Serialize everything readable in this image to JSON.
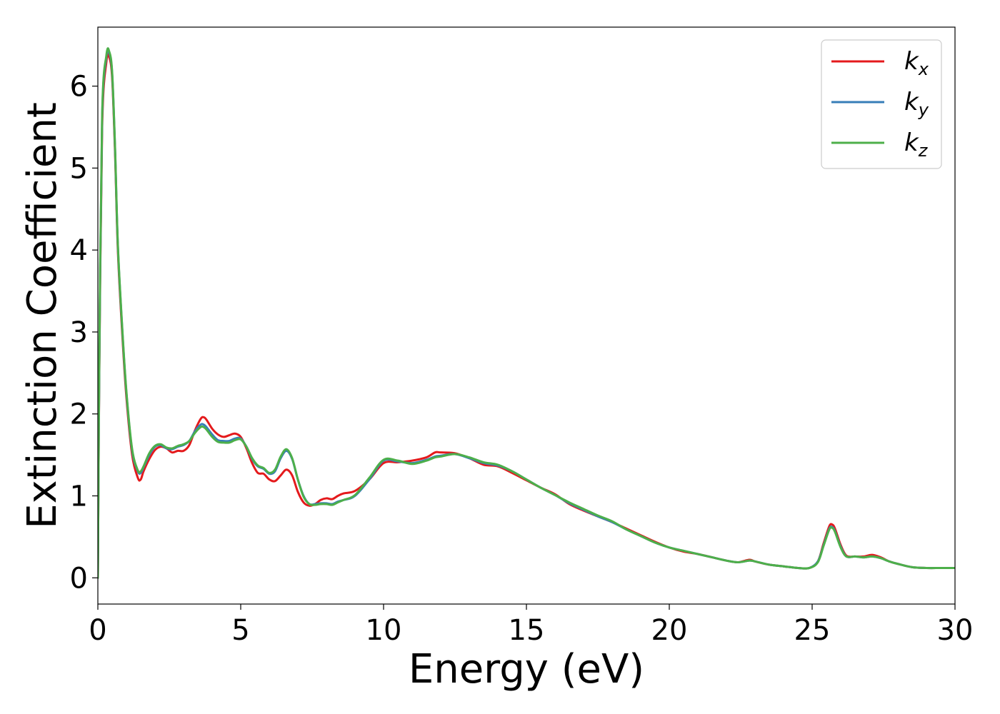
{
  "chart_data": {
    "type": "line",
    "title": "",
    "xlabel": "Energy (eV)",
    "ylabel": "Extinction Coefficient",
    "xlim": [
      0,
      30
    ],
    "ylim": [
      -0.32,
      6.72
    ],
    "grid": false,
    "legend_position": "top-right",
    "x_ticks": [
      {
        "value": 0,
        "label": "0"
      },
      {
        "value": 5,
        "label": "5"
      },
      {
        "value": 10,
        "label": "10"
      },
      {
        "value": 15,
        "label": "15"
      },
      {
        "value": 20,
        "label": "20"
      },
      {
        "value": 25,
        "label": "25"
      },
      {
        "value": 30,
        "label": "30"
      }
    ],
    "y_ticks": [
      {
        "value": 0,
        "label": "0"
      },
      {
        "value": 1,
        "label": "1"
      },
      {
        "value": 2,
        "label": "2"
      },
      {
        "value": 3,
        "label": "3"
      },
      {
        "value": 4,
        "label": "4"
      },
      {
        "value": 5,
        "label": "5"
      },
      {
        "value": 6,
        "label": "6"
      }
    ],
    "series": [
      {
        "name": "k",
        "subscript": "x",
        "color": "#e41a1c",
        "points": [
          [
            0,
            0
          ],
          [
            0.05,
            2.5
          ],
          [
            0.15,
            5.5
          ],
          [
            0.3,
            6.3
          ],
          [
            0.4,
            6.35
          ],
          [
            0.5,
            6.1
          ],
          [
            0.6,
            5.2
          ],
          [
            0.7,
            4.0
          ],
          [
            0.85,
            3.0
          ],
          [
            1.0,
            2.2
          ],
          [
            1.2,
            1.5
          ],
          [
            1.4,
            1.22
          ],
          [
            1.5,
            1.2
          ],
          [
            1.6,
            1.3
          ],
          [
            1.8,
            1.45
          ],
          [
            2.0,
            1.56
          ],
          [
            2.2,
            1.6
          ],
          [
            2.4,
            1.58
          ],
          [
            2.6,
            1.53
          ],
          [
            2.8,
            1.55
          ],
          [
            3.0,
            1.55
          ],
          [
            3.2,
            1.62
          ],
          [
            3.4,
            1.8
          ],
          [
            3.6,
            1.94
          ],
          [
            3.7,
            1.96
          ],
          [
            3.8,
            1.93
          ],
          [
            4.0,
            1.82
          ],
          [
            4.2,
            1.75
          ],
          [
            4.4,
            1.72
          ],
          [
            4.6,
            1.74
          ],
          [
            4.8,
            1.76
          ],
          [
            5.0,
            1.72
          ],
          [
            5.2,
            1.58
          ],
          [
            5.4,
            1.4
          ],
          [
            5.6,
            1.28
          ],
          [
            5.8,
            1.27
          ],
          [
            6.0,
            1.2
          ],
          [
            6.2,
            1.18
          ],
          [
            6.4,
            1.25
          ],
          [
            6.6,
            1.32
          ],
          [
            6.8,
            1.25
          ],
          [
            7.0,
            1.05
          ],
          [
            7.2,
            0.92
          ],
          [
            7.4,
            0.88
          ],
          [
            7.6,
            0.9
          ],
          [
            7.8,
            0.95
          ],
          [
            8.0,
            0.97
          ],
          [
            8.2,
            0.96
          ],
          [
            8.4,
            1.0
          ],
          [
            8.6,
            1.03
          ],
          [
            9.0,
            1.06
          ],
          [
            9.5,
            1.2
          ],
          [
            10.0,
            1.4
          ],
          [
            10.5,
            1.41
          ],
          [
            11.0,
            1.43
          ],
          [
            11.5,
            1.47
          ],
          [
            11.8,
            1.53
          ],
          [
            12.0,
            1.53
          ],
          [
            12.5,
            1.52
          ],
          [
            13.0,
            1.46
          ],
          [
            13.5,
            1.38
          ],
          [
            14.0,
            1.36
          ],
          [
            14.5,
            1.28
          ],
          [
            15.0,
            1.19
          ],
          [
            15.5,
            1.1
          ],
          [
            16.0,
            1.02
          ],
          [
            16.5,
            0.9
          ],
          [
            17.0,
            0.82
          ],
          [
            17.5,
            0.75
          ],
          [
            18.0,
            0.68
          ],
          [
            18.5,
            0.6
          ],
          [
            19.0,
            0.52
          ],
          [
            19.5,
            0.44
          ],
          [
            20.0,
            0.37
          ],
          [
            20.5,
            0.32
          ],
          [
            21.0,
            0.29
          ],
          [
            21.5,
            0.25
          ],
          [
            22.0,
            0.21
          ],
          [
            22.4,
            0.19
          ],
          [
            22.8,
            0.22
          ],
          [
            23.0,
            0.2
          ],
          [
            23.5,
            0.16
          ],
          [
            24.0,
            0.14
          ],
          [
            24.5,
            0.12
          ],
          [
            24.9,
            0.12
          ],
          [
            25.2,
            0.2
          ],
          [
            25.4,
            0.42
          ],
          [
            25.6,
            0.63
          ],
          [
            25.7,
            0.65
          ],
          [
            25.8,
            0.6
          ],
          [
            26.0,
            0.4
          ],
          [
            26.2,
            0.27
          ],
          [
            26.5,
            0.26
          ],
          [
            26.8,
            0.26
          ],
          [
            27.1,
            0.28
          ],
          [
            27.4,
            0.25
          ],
          [
            27.7,
            0.2
          ],
          [
            28.0,
            0.17
          ],
          [
            28.5,
            0.13
          ],
          [
            29.0,
            0.12
          ],
          [
            29.5,
            0.12
          ],
          [
            30.0,
            0.12
          ]
        ]
      },
      {
        "name": "k",
        "subscript": "y",
        "color": "#377eb8",
        "points": [
          [
            0,
            0
          ],
          [
            0.05,
            2.55
          ],
          [
            0.15,
            5.6
          ],
          [
            0.3,
            6.36
          ],
          [
            0.4,
            6.4
          ],
          [
            0.5,
            6.15
          ],
          [
            0.6,
            5.25
          ],
          [
            0.7,
            4.05
          ],
          [
            0.85,
            3.05
          ],
          [
            1.0,
            2.25
          ],
          [
            1.2,
            1.55
          ],
          [
            1.4,
            1.3
          ],
          [
            1.5,
            1.28
          ],
          [
            1.6,
            1.35
          ],
          [
            1.8,
            1.5
          ],
          [
            2.0,
            1.6
          ],
          [
            2.2,
            1.62
          ],
          [
            2.4,
            1.58
          ],
          [
            2.6,
            1.57
          ],
          [
            2.8,
            1.6
          ],
          [
            3.0,
            1.62
          ],
          [
            3.2,
            1.67
          ],
          [
            3.4,
            1.79
          ],
          [
            3.6,
            1.87
          ],
          [
            3.7,
            1.87
          ],
          [
            3.8,
            1.84
          ],
          [
            4.0,
            1.75
          ],
          [
            4.2,
            1.68
          ],
          [
            4.4,
            1.67
          ],
          [
            4.6,
            1.67
          ],
          [
            4.8,
            1.7
          ],
          [
            5.0,
            1.7
          ],
          [
            5.2,
            1.6
          ],
          [
            5.4,
            1.45
          ],
          [
            5.6,
            1.36
          ],
          [
            5.8,
            1.33
          ],
          [
            6.0,
            1.27
          ],
          [
            6.2,
            1.3
          ],
          [
            6.4,
            1.46
          ],
          [
            6.6,
            1.55
          ],
          [
            6.8,
            1.45
          ],
          [
            7.0,
            1.2
          ],
          [
            7.2,
            1.0
          ],
          [
            7.4,
            0.9
          ],
          [
            7.6,
            0.9
          ],
          [
            7.8,
            0.91
          ],
          [
            8.0,
            0.91
          ],
          [
            8.2,
            0.9
          ],
          [
            8.4,
            0.93
          ],
          [
            8.6,
            0.95
          ],
          [
            9.0,
            1.0
          ],
          [
            9.5,
            1.2
          ],
          [
            10.0,
            1.43
          ],
          [
            10.5,
            1.42
          ],
          [
            11.0,
            1.4
          ],
          [
            11.5,
            1.44
          ],
          [
            11.8,
            1.48
          ],
          [
            12.0,
            1.49
          ],
          [
            12.5,
            1.51
          ],
          [
            13.0,
            1.46
          ],
          [
            13.5,
            1.4
          ],
          [
            14.0,
            1.37
          ],
          [
            14.5,
            1.3
          ],
          [
            15.0,
            1.2
          ],
          [
            15.5,
            1.1
          ],
          [
            16.0,
            1.01
          ],
          [
            16.5,
            0.91
          ],
          [
            17.0,
            0.83
          ],
          [
            17.5,
            0.75
          ],
          [
            18.0,
            0.68
          ],
          [
            18.5,
            0.59
          ],
          [
            19.0,
            0.51
          ],
          [
            19.5,
            0.43
          ],
          [
            20.0,
            0.37
          ],
          [
            20.5,
            0.33
          ],
          [
            21.0,
            0.29
          ],
          [
            21.5,
            0.25
          ],
          [
            22.0,
            0.21
          ],
          [
            22.4,
            0.19
          ],
          [
            22.8,
            0.21
          ],
          [
            23.0,
            0.2
          ],
          [
            23.5,
            0.16
          ],
          [
            24.0,
            0.14
          ],
          [
            24.5,
            0.12
          ],
          [
            24.9,
            0.12
          ],
          [
            25.2,
            0.2
          ],
          [
            25.4,
            0.4
          ],
          [
            25.6,
            0.6
          ],
          [
            25.7,
            0.62
          ],
          [
            25.8,
            0.57
          ],
          [
            26.0,
            0.38
          ],
          [
            26.2,
            0.26
          ],
          [
            26.5,
            0.26
          ],
          [
            26.8,
            0.25
          ],
          [
            27.1,
            0.26
          ],
          [
            27.4,
            0.24
          ],
          [
            27.7,
            0.2
          ],
          [
            28.0,
            0.17
          ],
          [
            28.5,
            0.13
          ],
          [
            29.0,
            0.12
          ],
          [
            29.5,
            0.12
          ],
          [
            30.0,
            0.12
          ]
        ]
      },
      {
        "name": "k",
        "subscript": "z",
        "color": "#4daf4a",
        "points": [
          [
            0,
            0
          ],
          [
            0.05,
            2.6
          ],
          [
            0.15,
            5.65
          ],
          [
            0.3,
            6.38
          ],
          [
            0.4,
            6.42
          ],
          [
            0.5,
            6.17
          ],
          [
            0.6,
            5.27
          ],
          [
            0.7,
            4.07
          ],
          [
            0.85,
            3.07
          ],
          [
            1.0,
            2.27
          ],
          [
            1.2,
            1.57
          ],
          [
            1.4,
            1.31
          ],
          [
            1.5,
            1.3
          ],
          [
            1.6,
            1.36
          ],
          [
            1.8,
            1.52
          ],
          [
            2.0,
            1.61
          ],
          [
            2.2,
            1.63
          ],
          [
            2.4,
            1.59
          ],
          [
            2.6,
            1.58
          ],
          [
            2.8,
            1.61
          ],
          [
            3.0,
            1.63
          ],
          [
            3.2,
            1.67
          ],
          [
            3.4,
            1.77
          ],
          [
            3.6,
            1.84
          ],
          [
            3.7,
            1.84
          ],
          [
            3.8,
            1.81
          ],
          [
            4.0,
            1.72
          ],
          [
            4.2,
            1.66
          ],
          [
            4.4,
            1.65
          ],
          [
            4.6,
            1.65
          ],
          [
            4.8,
            1.68
          ],
          [
            5.0,
            1.69
          ],
          [
            5.2,
            1.6
          ],
          [
            5.4,
            1.46
          ],
          [
            5.6,
            1.37
          ],
          [
            5.8,
            1.34
          ],
          [
            6.0,
            1.28
          ],
          [
            6.2,
            1.32
          ],
          [
            6.4,
            1.48
          ],
          [
            6.6,
            1.57
          ],
          [
            6.8,
            1.46
          ],
          [
            7.0,
            1.2
          ],
          [
            7.2,
            0.99
          ],
          [
            7.4,
            0.9
          ],
          [
            7.6,
            0.89
          ],
          [
            7.8,
            0.9
          ],
          [
            8.0,
            0.9
          ],
          [
            8.2,
            0.89
          ],
          [
            8.4,
            0.92
          ],
          [
            8.6,
            0.95
          ],
          [
            9.0,
            1.01
          ],
          [
            9.5,
            1.22
          ],
          [
            10.0,
            1.44
          ],
          [
            10.5,
            1.43
          ],
          [
            11.0,
            1.39
          ],
          [
            11.5,
            1.43
          ],
          [
            11.8,
            1.47
          ],
          [
            12.0,
            1.48
          ],
          [
            12.5,
            1.51
          ],
          [
            13.0,
            1.47
          ],
          [
            13.5,
            1.41
          ],
          [
            14.0,
            1.38
          ],
          [
            14.5,
            1.3
          ],
          [
            15.0,
            1.2
          ],
          [
            15.5,
            1.1
          ],
          [
            16.0,
            1.01
          ],
          [
            16.5,
            0.92
          ],
          [
            17.0,
            0.84
          ],
          [
            17.5,
            0.76
          ],
          [
            18.0,
            0.69
          ],
          [
            18.5,
            0.59
          ],
          [
            19.0,
            0.51
          ],
          [
            19.5,
            0.43
          ],
          [
            20.0,
            0.37
          ],
          [
            20.5,
            0.33
          ],
          [
            21.0,
            0.29
          ],
          [
            21.5,
            0.25
          ],
          [
            22.0,
            0.21
          ],
          [
            22.4,
            0.19
          ],
          [
            22.8,
            0.21
          ],
          [
            23.0,
            0.2
          ],
          [
            23.5,
            0.16
          ],
          [
            24.0,
            0.14
          ],
          [
            24.5,
            0.12
          ],
          [
            24.9,
            0.12
          ],
          [
            25.2,
            0.19
          ],
          [
            25.4,
            0.39
          ],
          [
            25.6,
            0.59
          ],
          [
            25.7,
            0.61
          ],
          [
            25.8,
            0.56
          ],
          [
            26.0,
            0.37
          ],
          [
            26.2,
            0.26
          ],
          [
            26.5,
            0.26
          ],
          [
            26.8,
            0.25
          ],
          [
            27.1,
            0.26
          ],
          [
            27.4,
            0.24
          ],
          [
            27.7,
            0.2
          ],
          [
            28.0,
            0.17
          ],
          [
            28.5,
            0.13
          ],
          [
            29.0,
            0.12
          ],
          [
            29.5,
            0.12
          ],
          [
            30.0,
            0.12
          ]
        ]
      }
    ]
  }
}
